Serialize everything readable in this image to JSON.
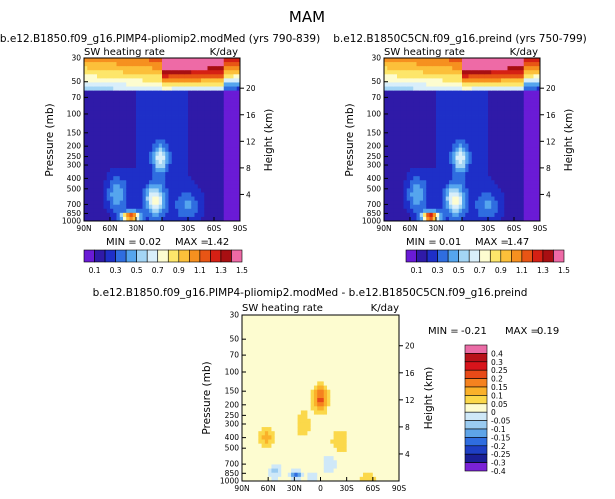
{
  "suptitle": "MAM",
  "chart_data": [
    {
      "type": "heatmap",
      "title": "b.e12.B1850.f09_g16.PIMP4-pliomip2.modMed (yrs 790-839)",
      "left_label": "SW heating rate",
      "units": "K/day",
      "ylabel": "Pressure (mb)",
      "ylabel_right": "Height (km)",
      "x_ticks": [
        "90N",
        "60N",
        "30N",
        "0",
        "30S",
        "60S",
        "90S"
      ],
      "y_ticks": [
        "1000",
        "850",
        "700",
        "500",
        "400",
        "300",
        "250",
        "200",
        "150",
        "100",
        "70",
        "50",
        "30"
      ],
      "height_ticks": [
        "4",
        "8",
        "12",
        "16",
        "20"
      ],
      "min_label": "MIN =",
      "min_value": "0.02",
      "max_label": "MAX =",
      "max_value": "1.42",
      "colorbar_levels": [
        "0.1",
        "0.3",
        "0.5",
        "0.7",
        "0.9",
        "1.1",
        "1.3",
        "1.5"
      ],
      "features": [
        {
          "lat": 36,
          "p": 920,
          "value": 1.42
        },
        {
          "lat": 10,
          "p": 620,
          "value": 0.9
        },
        {
          "lat": 0,
          "p": 250,
          "value": 0.75
        },
        {
          "lat": 55,
          "p": 560,
          "value": 0.55
        }
      ]
    },
    {
      "type": "heatmap",
      "title": "b.e12.B1850C5CN.f09_g16.preind (yrs 750-799)",
      "left_label": "SW heating rate",
      "units": "K/day",
      "ylabel": "Pressure (mb)",
      "ylabel_right": "Height (km)",
      "x_ticks": [
        "90N",
        "60N",
        "30N",
        "0",
        "30S",
        "60S",
        "90S"
      ],
      "y_ticks": [
        "1000",
        "850",
        "700",
        "500",
        "400",
        "300",
        "250",
        "200",
        "150",
        "100",
        "70",
        "50",
        "30"
      ],
      "height_ticks": [
        "4",
        "8",
        "12",
        "16",
        "20"
      ],
      "min_label": "MIN =",
      "min_value": "0.01",
      "max_label": "MAX =",
      "max_value": "1.47",
      "colorbar_levels": [
        "0.1",
        "0.3",
        "0.5",
        "0.7",
        "0.9",
        "1.1",
        "1.3",
        "1.5"
      ],
      "features": [
        {
          "lat": 36,
          "p": 920,
          "value": 1.47
        },
        {
          "lat": 10,
          "p": 620,
          "value": 0.9
        },
        {
          "lat": 0,
          "p": 250,
          "value": 0.75
        },
        {
          "lat": 55,
          "p": 560,
          "value": 0.55
        }
      ]
    },
    {
      "type": "heatmap",
      "title": "b.e12.B1850.f09_g16.PIMP4-pliomip2.modMed - b.e12.B1850C5CN.f09_g16.preind",
      "left_label": "SW heating rate",
      "units": "K/day",
      "ylabel": "Pressure (mb)",
      "ylabel_right": "Height (km)",
      "x_ticks": [
        "90N",
        "60N",
        "30N",
        "0",
        "30S",
        "60S",
        "90S"
      ],
      "y_ticks": [
        "1000",
        "850",
        "700",
        "500",
        "400",
        "300",
        "250",
        "200",
        "150",
        "100",
        "70",
        "50",
        "30"
      ],
      "height_ticks": [
        "4",
        "8",
        "12",
        "16",
        "20"
      ],
      "min_label": "MIN =",
      "min_value": "-0.21",
      "max_label": "MAX =",
      "max_value": "0.19",
      "colorbar_levels": [
        "0.4",
        "0.3",
        "0.25",
        "0.2",
        "0.15",
        "0.1",
        "0.05",
        "0",
        "-0.05",
        "-0.1",
        "-0.15",
        "-0.2",
        "-0.25",
        "-0.3",
        "-0.4"
      ],
      "features": [
        {
          "lat": 0,
          "p": 170,
          "value": 0.19
        },
        {
          "lat": 63,
          "p": 400,
          "value": 0.12
        },
        {
          "lat": 28,
          "p": 880,
          "value": -0.21
        },
        {
          "lat": -25,
          "p": 420,
          "value": 0.08
        }
      ]
    }
  ],
  "colors": {
    "abs_scale": [
      "#6a1bd6",
      "#2f1aa8",
      "#1e2fc8",
      "#2f6de0",
      "#55a5ee",
      "#a3d5f5",
      "#d8eefa",
      "#fdfcd0",
      "#fde66a",
      "#fcc03a",
      "#f6901f",
      "#e85515",
      "#d52014",
      "#a80f12",
      "#ee6aa6"
    ],
    "diff_scale": [
      "#ea6ca6",
      "#b8121a",
      "#d8141b",
      "#e84a18",
      "#f5821f",
      "#fab12a",
      "#fbd84a",
      "#fdfcd0",
      "#cfe8f8",
      "#9acbf1",
      "#5ea4e8",
      "#2f6de0",
      "#1e3fc4",
      "#1a1f96",
      "#7a22d6"
    ],
    "accent": "#7b2fe0"
  }
}
